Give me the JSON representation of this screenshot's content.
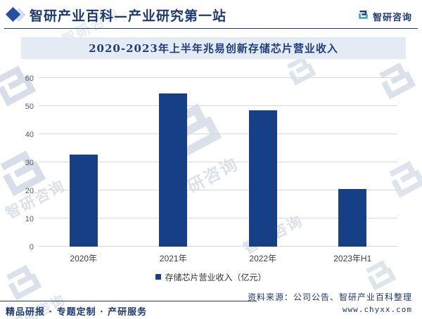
{
  "header": {
    "title": "智研产业百科—产业研究第一站",
    "brand": "智研咨询"
  },
  "chart_data": {
    "type": "bar",
    "title": "2020-2023年上半年兆易创新存储芯片营业收入",
    "categories": [
      "2020年",
      "2021年",
      "2022年",
      "2023年H1"
    ],
    "values": [
      32.7,
      54.5,
      48.6,
      20.4
    ],
    "series_name": "存储芯片营业收入（亿元）",
    "xlabel": "",
    "ylabel": "",
    "ylim": [
      0,
      60
    ],
    "yticks": [
      0,
      10,
      20,
      30,
      40,
      50,
      60
    ],
    "grid": true,
    "legend_position": "bottom",
    "bar_color": "#173f85"
  },
  "footer": {
    "services": "精品研报 · 专题定制 · 产研服务",
    "source_label": "资料来源：公司公告、智研产业百科整理",
    "website": "www.chyxx.com"
  },
  "colors": {
    "navy": "#1e3a6e",
    "teal": "#35a8bc",
    "title_bg": "#e4ebf5",
    "gridline": "#d9d9d9"
  },
  "watermark_text": "智研咨询"
}
